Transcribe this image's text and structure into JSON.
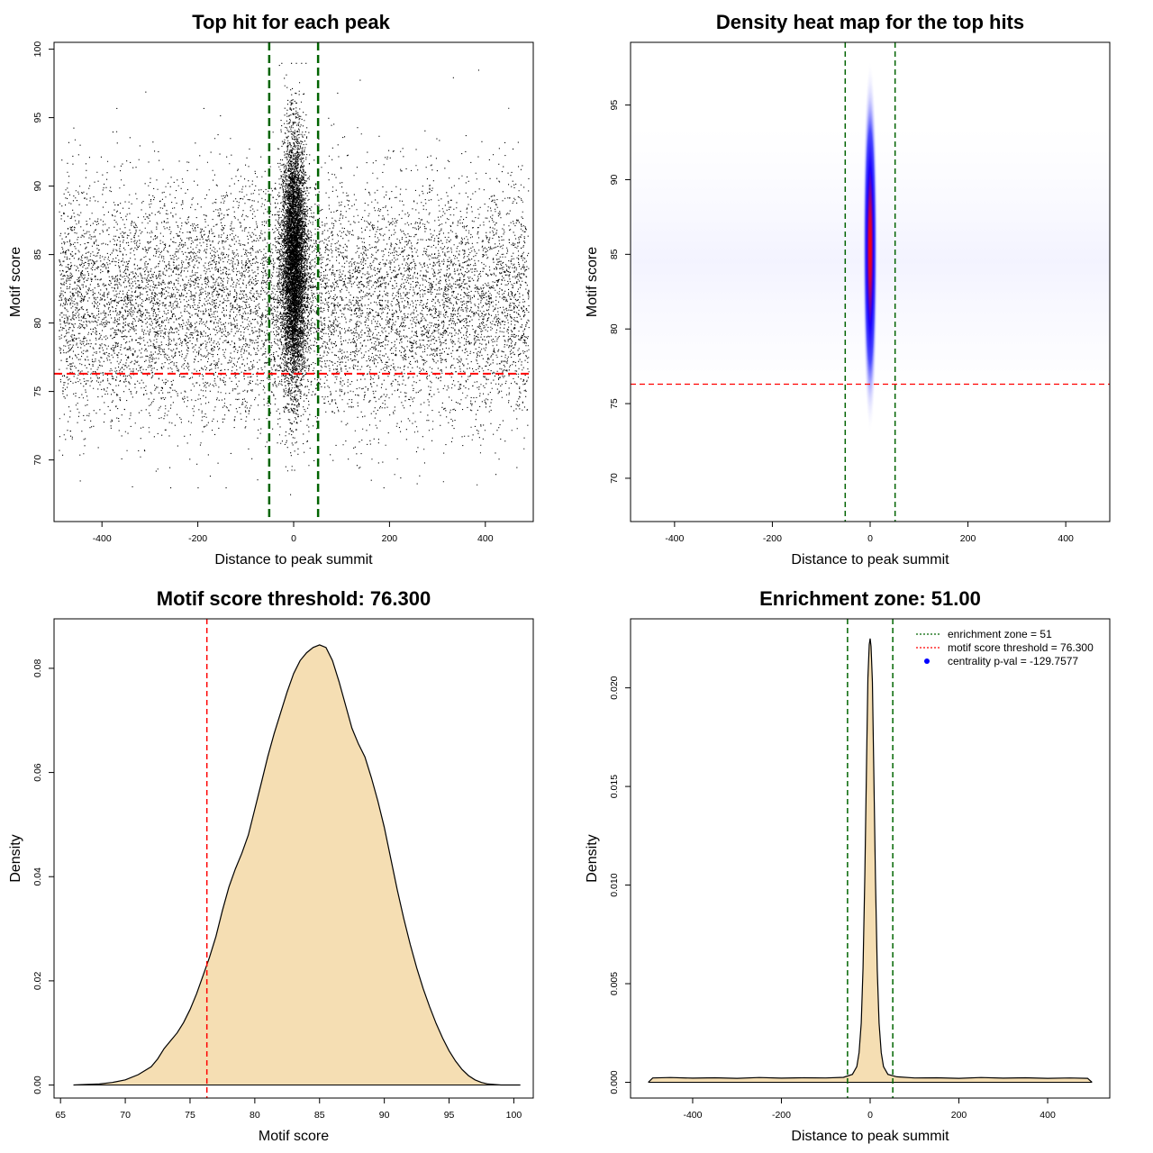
{
  "chart_data": [
    {
      "id": "scatter",
      "type": "scatter",
      "title": "Top hit for each peak",
      "xlabel": "Distance to peak summit",
      "ylabel": "Motif score",
      "xlim": [
        -500,
        500
      ],
      "ylim": [
        65.5,
        100.5
      ],
      "xticks": [
        -400,
        -200,
        0,
        200,
        400
      ],
      "yticks": [
        70,
        75,
        80,
        85,
        90,
        95,
        100
      ],
      "vlines": [
        -51,
        51
      ],
      "hline": 76.3,
      "colors": {
        "points": "#000000",
        "vlines": "#006400",
        "hline": "#ff0000"
      },
      "point_groups": [
        {
          "name": "",
          "n_points": 22000,
          "x_center": 0,
          "x_spread": 13,
          "y_center": 84.5,
          "y_spread": 4.5,
          "y_range": [
            67.5,
            99.0
          ]
        },
        {
          "name": "",
          "n_points": 13000,
          "x_range": [
            -490,
            490
          ],
          "y_center": 81.5,
          "y_spread": 4.3,
          "y_range": [
            68,
            98.5
          ]
        }
      ]
    },
    {
      "id": "heatmap",
      "type": "heatmap",
      "title": "Density heat map for the top hits",
      "xlabel": "Distance to peak summit",
      "ylabel": "Motif score",
      "xlim": [
        -490,
        490
      ],
      "ylim": [
        67.1,
        99.2
      ],
      "xticks": [
        -400,
        -200,
        0,
        200,
        400
      ],
      "yticks": [
        70,
        75,
        80,
        85,
        90,
        95
      ],
      "vlines": [
        -51,
        51
      ],
      "hline": 76.3,
      "density_peak": {
        "x": 0,
        "y": 85.5,
        "x_spread": 5,
        "y_spread": 3.3
      },
      "colormap": [
        "#ffffff",
        "#0000ff",
        "#ff0000"
      ],
      "colors": {
        "vlines": "#006400",
        "hline": "#ff0000"
      }
    },
    {
      "id": "score_density",
      "type": "area",
      "title": "Motif score threshold: 76.300",
      "xlabel": "Motif score",
      "ylabel": "Density",
      "xlim": [
        64.5,
        101.5
      ],
      "ylim": [
        -0.0025,
        0.0895
      ],
      "xticks": [
        65,
        70,
        75,
        80,
        85,
        90,
        95,
        100
      ],
      "yticks": [
        0.0,
        0.02,
        0.04,
        0.06,
        0.08
      ],
      "ytick_labels": [
        "0.00",
        "0.02",
        "0.04",
        "0.06",
        "0.08"
      ],
      "vline": 76.3,
      "fill": "#f5deb3",
      "colors": {
        "vline": "#ff0000",
        "line": "#000000"
      },
      "x": [
        66,
        68,
        69,
        70,
        71,
        72,
        72.5,
        73,
        73.5,
        74,
        74.5,
        75,
        75.5,
        76,
        76.5,
        77,
        77.5,
        78,
        78.5,
        79,
        79.5,
        80,
        80.5,
        81,
        81.5,
        82,
        82.5,
        83,
        83.5,
        84,
        84.5,
        85,
        85.5,
        86,
        86.5,
        87,
        87.5,
        88,
        88.5,
        89,
        89.5,
        90,
        90.5,
        91,
        91.5,
        92,
        92.5,
        93,
        93.5,
        94,
        94.5,
        95,
        95.5,
        96,
        96.5,
        97,
        97.5,
        98,
        98.5,
        99,
        100,
        100.5
      ],
      "y": [
        0.0,
        0.0002,
        0.0005,
        0.001,
        0.002,
        0.0035,
        0.005,
        0.007,
        0.0085,
        0.01,
        0.012,
        0.0145,
        0.0175,
        0.021,
        0.0245,
        0.0285,
        0.0335,
        0.038,
        0.0415,
        0.0445,
        0.048,
        0.053,
        0.058,
        0.063,
        0.0675,
        0.0715,
        0.0755,
        0.079,
        0.0815,
        0.083,
        0.084,
        0.0845,
        0.084,
        0.0815,
        0.0775,
        0.073,
        0.0685,
        0.0655,
        0.063,
        0.059,
        0.0545,
        0.0495,
        0.0435,
        0.0375,
        0.032,
        0.027,
        0.0225,
        0.0185,
        0.015,
        0.0118,
        0.009,
        0.0066,
        0.0046,
        0.003,
        0.0018,
        0.001,
        0.0005,
        0.0002,
        0.0001,
        0.0,
        0.0,
        0.0
      ]
    },
    {
      "id": "distance_density",
      "type": "area",
      "title": "Enrichment zone: 51.00",
      "xlabel": "Distance to peak summit",
      "ylabel": "Density",
      "xlim": [
        -540,
        540
      ],
      "ylim": [
        -0.0008,
        0.0235
      ],
      "xticks": [
        -400,
        -200,
        0,
        200,
        400
      ],
      "yticks": [
        0.0,
        0.005,
        0.01,
        0.015,
        0.02
      ],
      "ytick_labels": [
        "0.000",
        "0.005",
        "0.010",
        "0.015",
        "0.020"
      ],
      "vlines": [
        -51,
        51
      ],
      "fill": "#f5deb3",
      "colors": {
        "vlines": "#006400",
        "line": "#000000"
      },
      "x": [
        -500,
        -490,
        -450,
        -400,
        -350,
        -300,
        -250,
        -200,
        -150,
        -100,
        -60,
        -40,
        -30,
        -25,
        -20,
        -16,
        -12,
        -8,
        -5,
        -2,
        0,
        2,
        5,
        8,
        12,
        16,
        20,
        25,
        30,
        40,
        60,
        100,
        150,
        200,
        250,
        300,
        350,
        400,
        450,
        490,
        500
      ],
      "y": [
        0.0,
        0.00022,
        0.00024,
        0.00021,
        0.00023,
        0.0002,
        0.00024,
        0.00021,
        0.00023,
        0.00022,
        0.00025,
        0.0004,
        0.0008,
        0.0015,
        0.003,
        0.0058,
        0.0105,
        0.0165,
        0.0205,
        0.0222,
        0.0225,
        0.0221,
        0.0203,
        0.0162,
        0.0103,
        0.0057,
        0.003,
        0.0015,
        0.0008,
        0.0004,
        0.00028,
        0.00022,
        0.00023,
        0.0002,
        0.00024,
        0.00021,
        0.00023,
        0.0002,
        0.00022,
        0.0002,
        0.0
      ],
      "legend": {
        "position": "top-right",
        "entries": [
          {
            "label": "enrichment zone = 51",
            "color": "#006400",
            "symbol": "dotted-line"
          },
          {
            "label": "motif score threshold = 76.300",
            "color": "#ff0000",
            "symbol": "dotted-line"
          },
          {
            "label": "centrality p-val = -129.7577",
            "color": "#0000ff",
            "symbol": "dot"
          }
        ]
      }
    }
  ]
}
